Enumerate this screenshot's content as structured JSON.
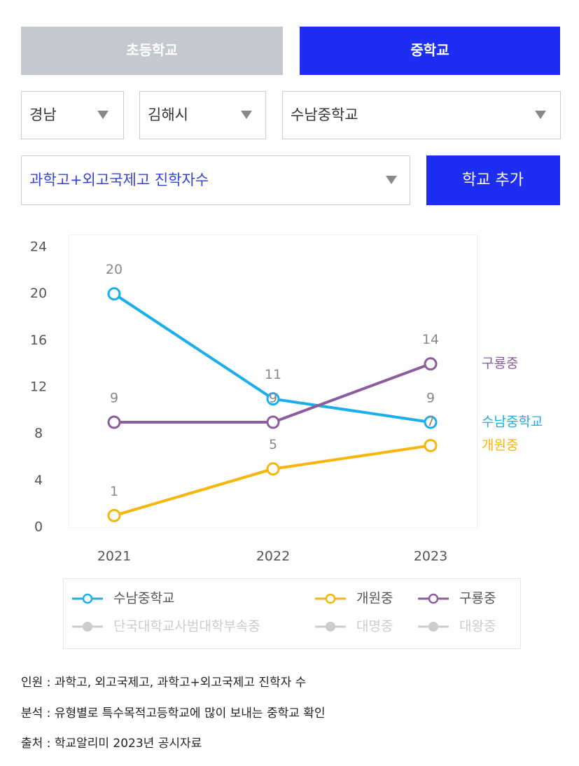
{
  "tabs": [
    "초등학교",
    "중학교"
  ],
  "selects": [
    "경남",
    "김해시",
    "수남중학교"
  ],
  "metric_select": "과학고+외고국제고 진학자수",
  "add_button": "학교 추가",
  "chart_data": {
    "type": "line",
    "categories": [
      "2021",
      "2022",
      "2023"
    ],
    "ylim": [
      0,
      24
    ],
    "yticks": [
      0,
      4,
      8,
      12,
      16,
      20,
      24
    ],
    "series": [
      {
        "name": "수남중학교",
        "color": "#1aaeea",
        "values": [
          20,
          11,
          9
        ]
      },
      {
        "name": "개원중",
        "color": "#f6b60e",
        "values": [
          1,
          5,
          7
        ]
      },
      {
        "name": "구룡중",
        "color": "#8c5c9e",
        "values": [
          9,
          9,
          14
        ]
      }
    ],
    "hidden_series": [
      "단국대학교사범대학부속중",
      "대명중",
      "대왕중"
    ],
    "hidden_color": "#cccccc"
  },
  "notes": [
    "인원 : 과학고, 외고국제고, 과학고+외고국제고 진학자 수",
    "분석 : 유형별로 특수목적고등학교에 많이 보내는 중학교 확인",
    "출처 : 학교알리미 2023년 공시자료"
  ]
}
